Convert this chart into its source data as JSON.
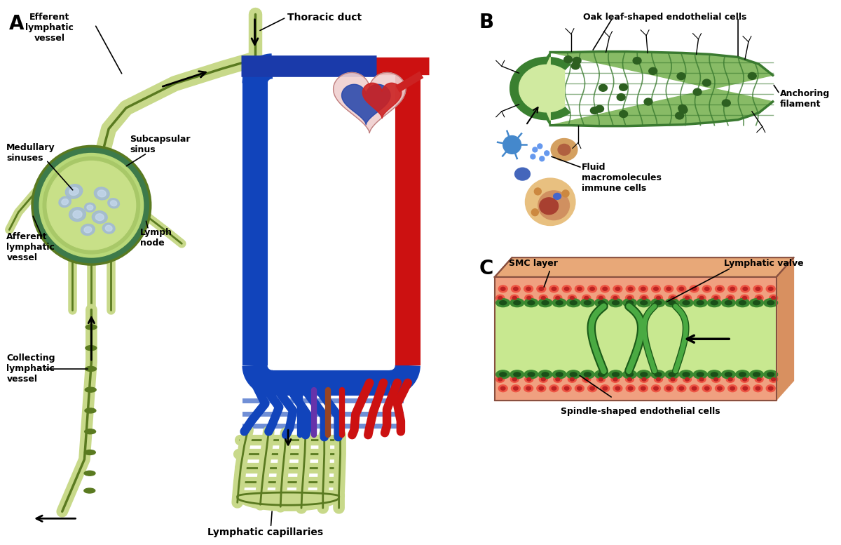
{
  "bg_color": "#ffffff",
  "panel_A_label": "A",
  "panel_B_label": "B",
  "panel_C_label": "C",
  "lv_color": "#c8d98a",
  "lv_edge": "#5a7a20",
  "ln_outer": "#3d7a4a",
  "art_color": "#cc1111",
  "vein_color": "#1144bb",
  "text_color": "#000000",
  "A_labels": [
    "Efferent\nlymphatic\nvessel",
    "Medullary\nsinuses",
    "Subcapsular\nsinus",
    "Afferent\nlymphatic\nvessel",
    "Lymph\nnode",
    "Collecting\nlymphatic\nvessel",
    "Thoracic duct",
    "Lymphatic capillaries"
  ],
  "B_labels": [
    "Oak leaf-shaped endothelial cells",
    "Anchoring\nfilament",
    "Fluid\nmacromolecules\nimmune cells"
  ],
  "C_labels": [
    "SMC layer",
    "Lymphatic valve",
    "Spindle-shaped endothelial cells"
  ]
}
